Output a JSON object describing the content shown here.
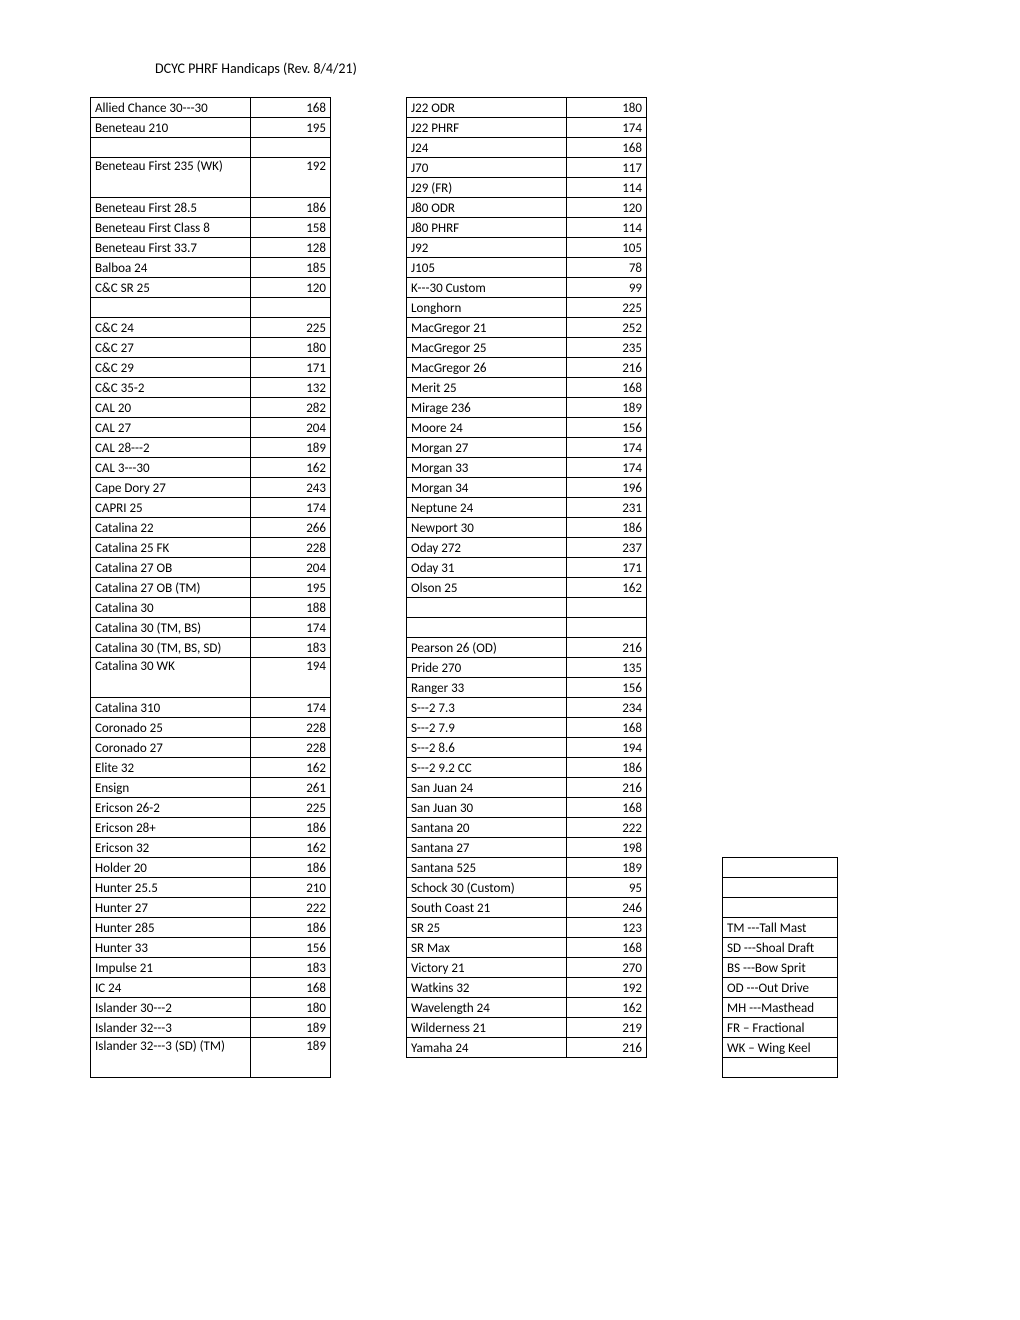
{
  "title": "DCYC PHRF Handicaps (Rev. 8/4/21)",
  "table1": [
    {
      "name": "Allied Chance 30---30",
      "val": "168"
    },
    {
      "name": "Beneteau 210",
      "val": "195"
    },
    {
      "name": "",
      "val": ""
    },
    {
      "name": "Beneteau First 235 (WK)",
      "val": "192",
      "tall": true
    },
    {
      "name": "Beneteau First 28.5",
      "val": "186"
    },
    {
      "name": "Beneteau First Class 8",
      "val": "158"
    },
    {
      "name": "Beneteau First 33.7",
      "val": "128"
    },
    {
      "name": "Balboa 24",
      "val": "185"
    },
    {
      "name": "C&C SR 25",
      "val": "120"
    },
    {
      "name": "",
      "val": ""
    },
    {
      "name": "C&C 24",
      "val": "225"
    },
    {
      "name": "C&C 27",
      "val": "180"
    },
    {
      "name": "C&C 29",
      "val": "171"
    },
    {
      "name": "C&C 35-2",
      "val": "132"
    },
    {
      "name": "CAL 20",
      "val": "282"
    },
    {
      "name": "CAL 27",
      "val": "204"
    },
    {
      "name": "CAL 28---2",
      "val": "189"
    },
    {
      "name": "CAL 3---30",
      "val": "162"
    },
    {
      "name": "Cape Dory 27",
      "val": "243"
    },
    {
      "name": "CAPRI 25",
      "val": "174"
    },
    {
      "name": "Catalina 22",
      "val": "266"
    },
    {
      "name": "Catalina 25 FK",
      "val": "228"
    },
    {
      "name": "Catalina 27 OB",
      "val": "204"
    },
    {
      "name": "Catalina 27 OB (TM)",
      "val": "195"
    },
    {
      "name": "Catalina 30",
      "val": "188"
    },
    {
      "name": "Catalina 30 (TM, BS)",
      "val": "174"
    },
    {
      "name": "Catalina 30 (TM, BS, SD)",
      "val": "183"
    },
    {
      "name": "Catalina 30 WK",
      "val": "194",
      "tall": true
    },
    {
      "name": "Catalina 310",
      "val": "174"
    },
    {
      "name": "Coronado 25",
      "val": "228"
    },
    {
      "name": "Coronado 27",
      "val": "228"
    },
    {
      "name": "Elite 32",
      "val": "162"
    },
    {
      "name": "Ensign",
      "val": "261"
    },
    {
      "name": "Ericson 26-2",
      "val": "225"
    },
    {
      "name": "Ericson 28+",
      "val": "186"
    },
    {
      "name": "Ericson 32",
      "val": "162"
    },
    {
      "name": "Holder 20",
      "val": "186"
    },
    {
      "name": "Hunter 25.5",
      "val": "210"
    },
    {
      "name": "Hunter 27",
      "val": "222"
    },
    {
      "name": "Hunter 285",
      "val": "186"
    },
    {
      "name": "Hunter 33",
      "val": "156"
    },
    {
      "name": "Impulse 21",
      "val": "183"
    },
    {
      "name": "IC 24",
      "val": "168"
    },
    {
      "name": "Islander 30---2",
      "val": "180"
    },
    {
      "name": "Islander 32---3",
      "val": "189"
    },
    {
      "name": "Islander 32---3 (SD) (TM)",
      "val": "189",
      "tall": true
    }
  ],
  "table2": [
    {
      "name": "J22 ODR",
      "val": "180"
    },
    {
      "name": "J22 PHRF",
      "val": "174"
    },
    {
      "name": "J24",
      "val": "168"
    },
    {
      "name": "J70",
      "val": "117"
    },
    {
      "name": "J29 (FR)",
      "val": "114"
    },
    {
      "name": "J80 ODR",
      "val": "120"
    },
    {
      "name": "J80 PHRF",
      "val": "114"
    },
    {
      "name": "J92",
      "val": "105"
    },
    {
      "name": "J105",
      "val": "78"
    },
    {
      "name": "K---30 Custom",
      "val": "99"
    },
    {
      "name": "Longhorn",
      "val": "225"
    },
    {
      "name": "MacGregor 21",
      "val": "252"
    },
    {
      "name": "MacGregor 25",
      "val": "235"
    },
    {
      "name": "MacGregor 26",
      "val": "216"
    },
    {
      "name": "Merit 25",
      "val": "168"
    },
    {
      "name": "Mirage 236",
      "val": "189"
    },
    {
      "name": "Moore 24",
      "val": "156"
    },
    {
      "name": "Morgan 27",
      "val": "174"
    },
    {
      "name": "Morgan 33",
      "val": "174"
    },
    {
      "name": "Morgan 34",
      "val": "196"
    },
    {
      "name": "Neptune 24",
      "val": "231"
    },
    {
      "name": "Newport 30",
      "val": "186"
    },
    {
      "name": "Oday 272",
      "val": "237"
    },
    {
      "name": "Oday 31",
      "val": "171"
    },
    {
      "name": "Olson 25",
      "val": "162"
    },
    {
      "name": "",
      "val": ""
    },
    {
      "name": "",
      "val": ""
    },
    {
      "name": "Pearson 26 (OD)",
      "val": "216"
    },
    {
      "name": "Pride 270",
      "val": "135"
    },
    {
      "name": "Ranger 33",
      "val": "156"
    },
    {
      "name": "S---2 7.3",
      "val": "234"
    },
    {
      "name": "S---2 7.9",
      "val": "168"
    },
    {
      "name": "S---2 8.6",
      "val": "194"
    },
    {
      "name": "S---2 9.2 CC",
      "val": "186"
    },
    {
      "name": "San Juan 24",
      "val": "216"
    },
    {
      "name": "San Juan 30",
      "val": "168"
    },
    {
      "name": "Santana 20",
      "val": "222"
    },
    {
      "name": "Santana 27",
      "val": "198"
    },
    {
      "name": "Santana 525",
      "val": "189"
    },
    {
      "name": "Schock 30 (Custom)",
      "val": "95"
    },
    {
      "name": "South Coast 21",
      "val": "246"
    },
    {
      "name": "SR 25",
      "val": "123"
    },
    {
      "name": "SR Max",
      "val": "168"
    },
    {
      "name": "Victory 21",
      "val": "270"
    },
    {
      "name": "Watkins 32",
      "val": "192"
    },
    {
      "name": "Wavelength 24",
      "val": "162"
    },
    {
      "name": "Wilderness 21",
      "val": "219"
    },
    {
      "name": "Yamaha 24",
      "val": "216"
    }
  ],
  "legend": [
    "",
    "",
    "",
    "TM ---Tall Mast",
    "SD ---Shoal Draft",
    "BS ---Bow Sprit",
    "OD ---Out Drive",
    "MH ---Masthead",
    "FR – Fractional",
    "WK – Wing Keel",
    ""
  ]
}
